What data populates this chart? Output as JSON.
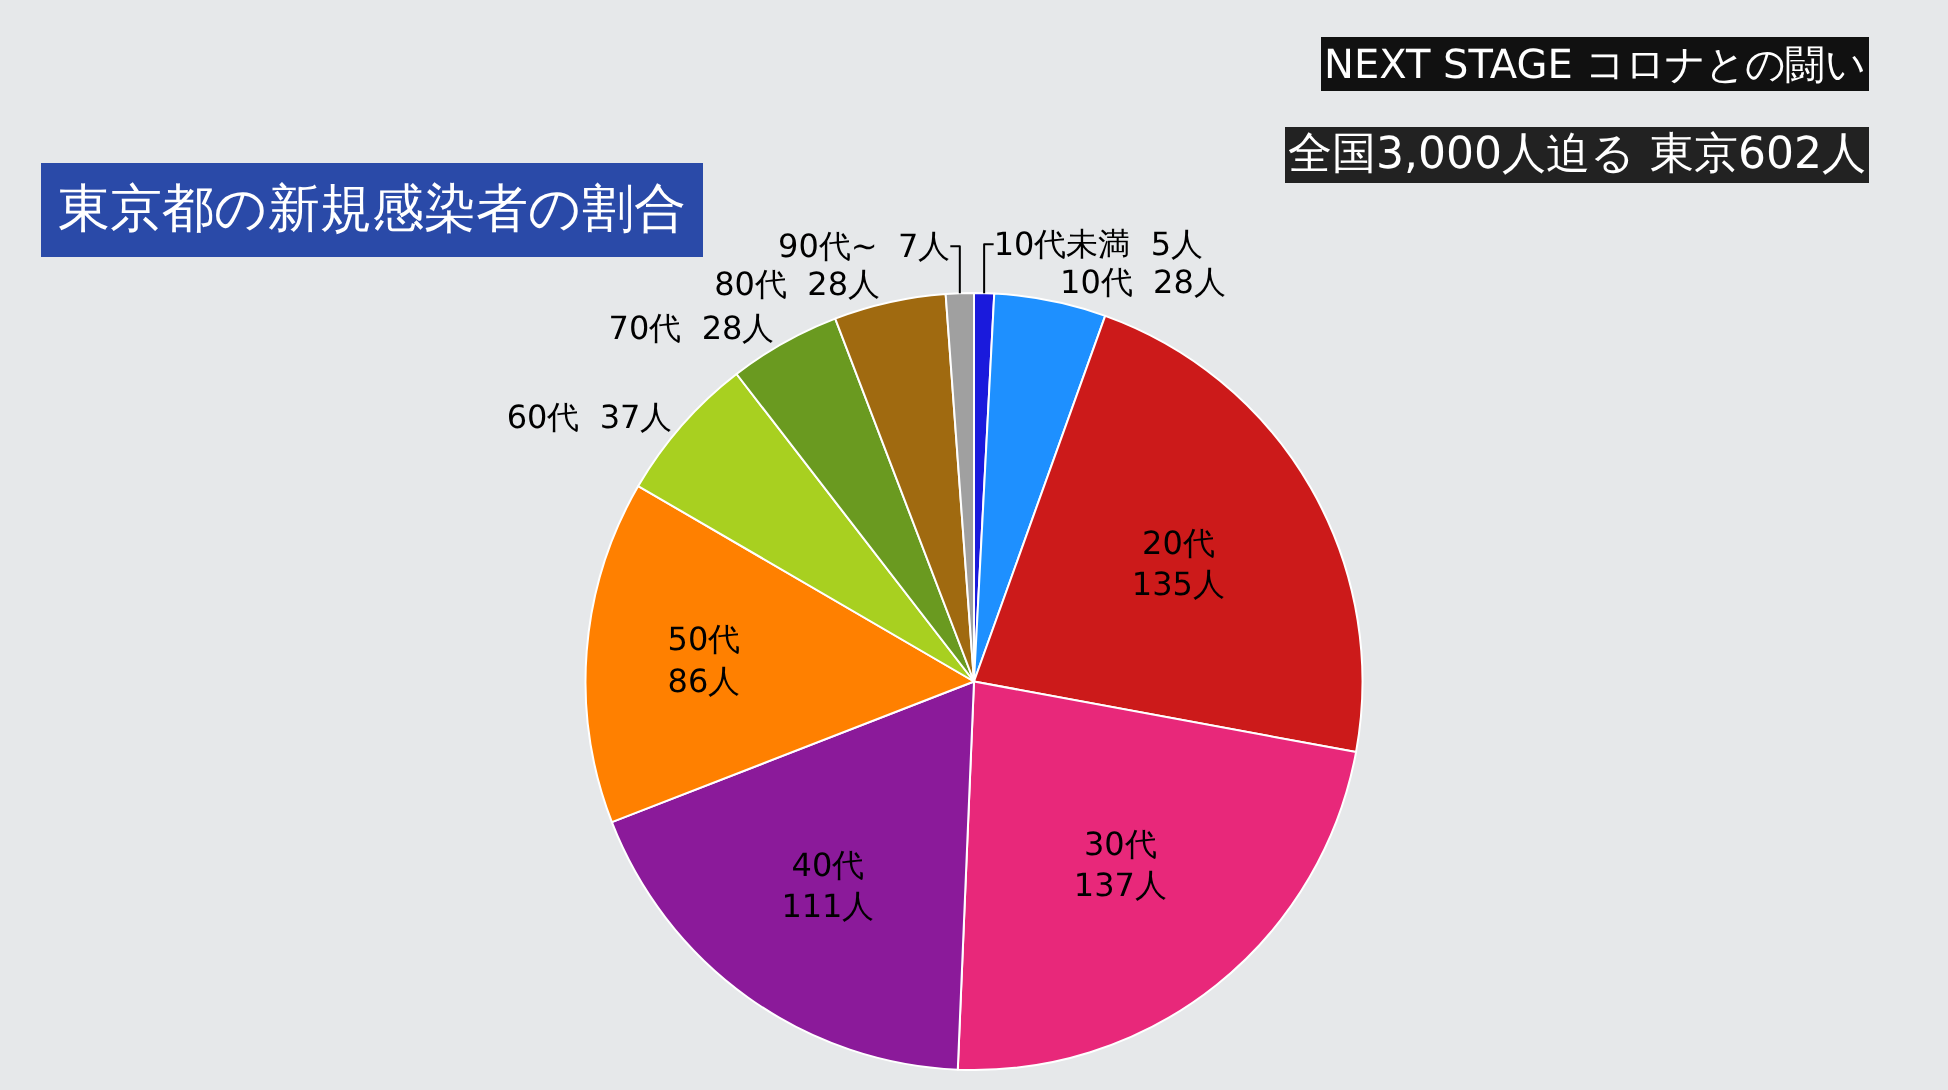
{
  "chart_data": {
    "type": "pie",
    "title": "東京都の新規感染者の割合",
    "subtitle": "全国3,000人迫る 東京602人",
    "annotations": [
      "NEXT STAGE コロナとの闘い"
    ],
    "categories": [
      "10代未満",
      "10代",
      "20代",
      "30代",
      "40代",
      "50代",
      "60代",
      "70代",
      "80代",
      "90代~"
    ],
    "values": [
      5,
      28,
      135,
      137,
      111,
      86,
      37,
      28,
      28,
      7
    ],
    "value_labels": [
      "5人",
      "28人",
      "135人",
      "137人",
      "111人",
      "86人",
      "37人",
      "28人",
      "28人",
      "7人"
    ],
    "colors": [
      "#1a1adc",
      "#1e90ff",
      "#cc1a1a",
      "#e8287a",
      "#8b1a9a",
      "#ff8000",
      "#a8d020",
      "#6a9a20",
      "#a06a10",
      "#a0a0a0"
    ],
    "legend": false
  }
}
